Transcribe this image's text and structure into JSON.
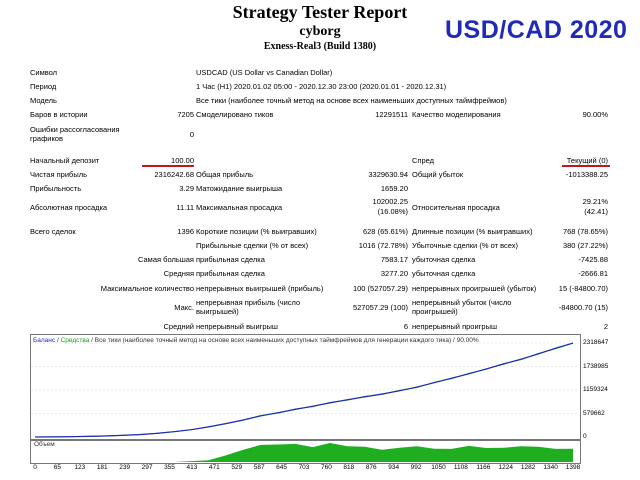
{
  "header": {
    "title": "Strategy Tester Report",
    "account": "cyborg",
    "server": "Exness-Real3 (Build 1380)",
    "badge": "USD/CAD 2020"
  },
  "settings": {
    "symbol_label": "Символ",
    "symbol_value": "USDCAD (US Dollar vs Canadian Dollar)",
    "period_label": "Период",
    "period_value": "1 Час (H1) 2020.01.02 05:00 - 2020.12.30 23:00 (2020.01.01 - 2020.12.31)",
    "model_label": "Модель",
    "model_value": "Все тики (наиболее точный метод на основе всех наименьших доступных таймфреймов)",
    "bars_label": "Баров в истории",
    "bars_value": "7205",
    "ticks_label": "Смоделировано тиков",
    "ticks_value": "12291511",
    "quality_label": "Качество моделирования",
    "quality_value": "90.00%",
    "errors_label": "Ошибки рассогласования графиков",
    "errors_value": "0"
  },
  "results": {
    "deposit_label": "Начальный депозит",
    "deposit_value": "100.00",
    "spread_label": "Спред",
    "spread_value": "Текущий (0)",
    "net_label": "Чистая прибыль",
    "net_value": "2316242.68",
    "gross_profit_label": "Общая прибыль",
    "gross_profit_value": "3329630.94",
    "gross_loss_label": "Общий убыток",
    "gross_loss_value": "-1013388.25",
    "pf_label": "Прибыльность",
    "pf_value": "3.29",
    "expected_label": "Матожидание выигрыша",
    "expected_value": "1659.20",
    "abs_dd_label": "Абсолютная просадка",
    "abs_dd_value": "11.11",
    "max_dd_label": "Максимальная просадка",
    "max_dd_value1": "102002.25",
    "max_dd_value2": "(16.08%)",
    "rel_dd_label": "Относительная просадка",
    "rel_dd_value1": "29.21%",
    "rel_dd_value2": "(42.41)",
    "total_label": "Всего сделок",
    "total_value": "1396",
    "short_label": "Короткие позиции (% выигравших)",
    "short_value": "628 (65.61%)",
    "long_label": "Длинные позиции (% выигравших)",
    "long_value": "768 (78.65%)",
    "profit_trades_label": "Прибыльные сделки (% от всех)",
    "profit_trades_value": "1016 (72.78%)",
    "loss_trades_label": "Убыточные сделки (% от всех)",
    "loss_trades_value": "380 (27.22%)",
    "largest_label": "Самая большая",
    "largest_profit_label": "прибыльная сделка",
    "largest_profit_value": "7583.17",
    "largest_loss_label": "убыточная сделка",
    "largest_loss_value": "-7425.88",
    "average_label": "Средняя",
    "average_profit_label": "прибыльная сделка",
    "average_profit_value": "3277.20",
    "average_loss_label": "убыточная сделка",
    "average_loss_value": "-2666.81",
    "maxcount_label": "Максимальное количество",
    "consec_wins_label": "непрерывных выигрышей (прибыль)",
    "consec_wins_value": "100 (527057.29)",
    "consec_losses_label": "непрерывных проигрышей (убыток)",
    "consec_losses_value": "15 (-84800.70)",
    "max_label": "Макс.",
    "consec_profit_label": "непрерывная прибыль (число выигрышей)",
    "consec_profit_value": "527057.29 (100)",
    "consec_loss_label": "непрерывный убыток (число проигрышей)",
    "consec_loss_value": "-84800.70 (15)",
    "avg_label": "Средний",
    "avg_wins_label": "непрерывный выигрыш",
    "avg_wins_value": "6",
    "avg_losses_label": "непрерывный проигрыш",
    "avg_losses_value": "2"
  },
  "chart": {
    "legend_balance": "Баланс",
    "legend_sep": " / ",
    "legend_equity": "Средства",
    "legend_rest": " / Все тики (наиболее точный метод на основе всех наименьших доступных таймфреймов для генерации каждого тика) / 90.00%",
    "volume_label": "Объем",
    "colors": {
      "balance": "#1f2bb8",
      "equity": "#1a9a1a",
      "volume": "#1fae1f"
    }
  },
  "chart_data": {
    "type": "line",
    "title": "",
    "series": [
      {
        "name": "Баланс",
        "values": [
          100,
          3000,
          8000,
          15000,
          25000,
          40000,
          60000,
          90000,
          130000,
          180000,
          250000,
          330000,
          420000,
          520000,
          600000,
          680000,
          760000,
          840000,
          920000,
          990000,
          1060000,
          1140000,
          1230000,
          1340000,
          1450000,
          1560000,
          1680000,
          1800000,
          1920000,
          2050000,
          2190000,
          2316243
        ]
      },
      {
        "name": "Средства",
        "values": [
          100,
          3000,
          8000,
          15000,
          25000,
          40000,
          60000,
          90000,
          130000,
          180000,
          250000,
          330000,
          420000,
          530000,
          590000,
          690000,
          750000,
          850000,
          910000,
          1000000,
          1050000,
          1150000,
          1220000,
          1350000,
          1440000,
          1570000,
          1670000,
          1810000,
          1910000,
          2060000,
          2180000,
          2316243
        ]
      }
    ],
    "x_ticks": [
      "0",
      "65",
      "123",
      "181",
      "239",
      "297",
      "355",
      "413",
      "471",
      "529",
      "587",
      "645",
      "703",
      "760",
      "818",
      "876",
      "934",
      "992",
      "1050",
      "1108",
      "1166",
      "1224",
      "1282",
      "1340",
      "1398"
    ],
    "y_ticks": [
      "2318647",
      "1738985",
      "1159324",
      "579662",
      "0"
    ],
    "ylim": [
      0,
      2318647
    ],
    "xlim": [
      0,
      1398
    ],
    "volume": [
      0,
      0,
      0,
      0,
      0,
      0,
      0,
      0,
      0,
      0.05,
      0.1,
      0.35,
      0.7,
      0.9,
      1.0,
      0.95,
      0.85,
      1.0,
      0.9,
      0.8,
      0.7,
      0.75,
      0.9,
      0.7,
      0.75,
      0.85,
      0.8,
      0.75,
      0.9,
      0.8,
      0.75,
      0.7
    ]
  }
}
